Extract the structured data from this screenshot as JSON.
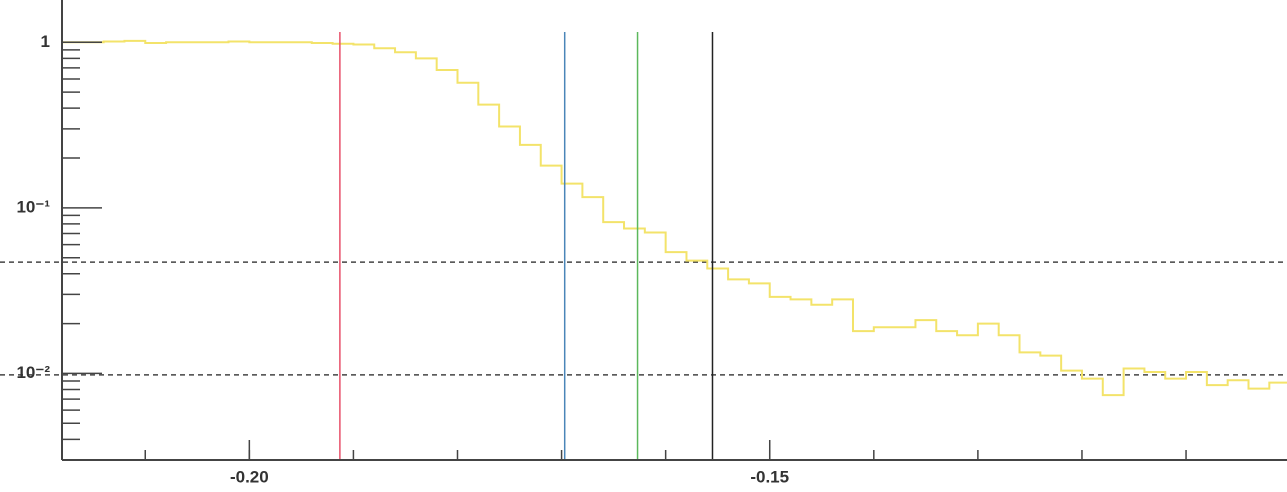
{
  "chart_data": {
    "type": "histogram",
    "log_y": true,
    "bins": [
      -0.218,
      -0.216,
      -0.214,
      -0.212,
      -0.21,
      -0.208,
      -0.206,
      -0.204,
      -0.202,
      -0.2,
      -0.198,
      -0.196,
      -0.194,
      -0.192,
      -0.19,
      -0.188,
      -0.186,
      -0.184,
      -0.182,
      -0.18,
      -0.178,
      -0.176,
      -0.174,
      -0.172,
      -0.17,
      -0.168,
      -0.166,
      -0.164,
      -0.162,
      -0.16,
      -0.158,
      -0.156,
      -0.154,
      -0.152,
      -0.15,
      -0.148,
      -0.146,
      -0.144,
      -0.142,
      -0.14,
      -0.138,
      -0.136,
      -0.134,
      -0.132,
      -0.13,
      -0.128,
      -0.126,
      -0.124,
      -0.122,
      -0.12,
      -0.118,
      -0.116,
      -0.114,
      -0.112,
      -0.11,
      -0.108,
      -0.106,
      -0.104,
      -0.102,
      -0.1
    ],
    "values": [
      1.0,
      1.0,
      1.01,
      1.02,
      0.99,
      1.0,
      1.0,
      1.0,
      1.01,
      1.0,
      1.0,
      1.0,
      0.99,
      0.98,
      0.97,
      0.92,
      0.87,
      0.8,
      0.68,
      0.57,
      0.42,
      0.31,
      0.24,
      0.18,
      0.14,
      0.116,
      0.082,
      0.075,
      0.071,
      0.054,
      0.048,
      0.043,
      0.037,
      0.035,
      0.029,
      0.028,
      0.026,
      0.028,
      0.018,
      0.019,
      0.019,
      0.021,
      0.018,
      0.017,
      0.02,
      0.017,
      0.0134,
      0.0128,
      0.0104,
      0.0093,
      0.0074,
      0.0107,
      0.0102,
      0.0093,
      0.0102,
      0.0085,
      0.0091,
      0.0081,
      0.0088
    ],
    "color": "#f3e36a",
    "xlim": [
      -0.218,
      -0.1003
    ],
    "ylim": [
      0.003,
      1.8
    ],
    "xticks": [
      {
        "value": -0.2,
        "label": "-0.20"
      },
      {
        "value": -0.15,
        "label": "-0.15"
      }
    ],
    "yticks": [
      {
        "value": 1,
        "label": "1"
      },
      {
        "value": 0.1,
        "label": "10⁻¹"
      },
      {
        "value": 0.01,
        "label": "10⁻²"
      }
    ],
    "vlines": [
      {
        "x": -0.1913,
        "color": "#e8506a"
      },
      {
        "x": -0.1697,
        "color": "#4a86b8"
      },
      {
        "x": -0.1627,
        "color": "#5cb85c"
      },
      {
        "x": -0.1555,
        "color": "#222222"
      }
    ],
    "hlines": [
      0.047,
      0.0098
    ]
  }
}
